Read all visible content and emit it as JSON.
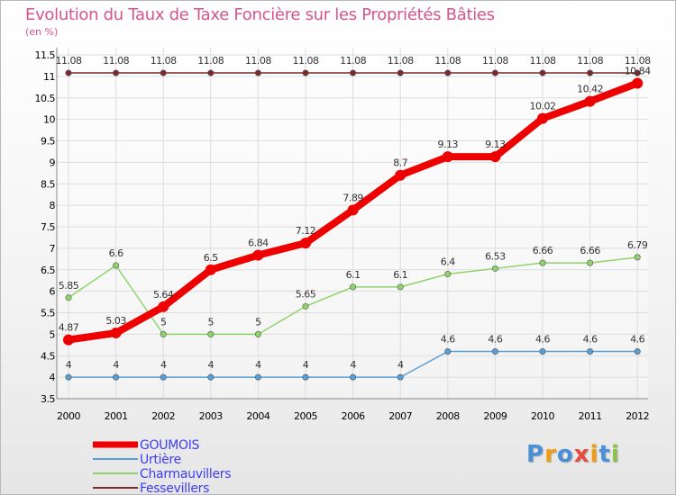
{
  "chart_data": {
    "type": "line",
    "title": "Evolution du Taux de Taxe Foncière sur les Propriétés Bâties",
    "ylabel": "(en %)",
    "x": [
      "2000",
      "2001",
      "2002",
      "2003",
      "2004",
      "2005",
      "2006",
      "2007",
      "2008",
      "2009",
      "2010",
      "2011",
      "2012"
    ],
    "y_ticks": [
      "3.5",
      "4",
      "4.5",
      "5",
      "5.5",
      "6",
      "6.5",
      "7",
      "7.5",
      "8",
      "8.5",
      "9",
      "9.5",
      "10",
      "10.5",
      "11",
      "11.5"
    ],
    "ylim": [
      3.5,
      11.5
    ],
    "grid": true,
    "legend_position": "bottom-left",
    "series": [
      {
        "name": "GOUMOIS",
        "color": "#ee0000",
        "values": [
          4.87,
          5.03,
          5.64,
          6.5,
          6.84,
          7.12,
          7.89,
          8.7,
          9.13,
          9.13,
          10.02,
          10.42,
          10.84
        ],
        "labels": [
          "4.87",
          "5.03",
          "5.64",
          "6.5",
          "6.84",
          "7.12",
          "7.89",
          "8.7",
          "9.13",
          "9.13",
          "10.02",
          "10.42",
          "10.84"
        ]
      },
      {
        "name": "Urtière",
        "color": "#5a9fd4",
        "values": [
          4,
          4,
          4,
          4,
          4,
          4,
          4,
          4,
          4.6,
          4.6,
          4.6,
          4.6,
          4.6
        ],
        "labels": [
          "4",
          "4",
          "4",
          "4",
          "4",
          "4",
          "4",
          "4",
          "4.6",
          "4.6",
          "4.6",
          "4.6",
          "4.6"
        ]
      },
      {
        "name": "Charmauvillers",
        "color": "#8fd46b",
        "values": [
          5.85,
          6.6,
          5,
          5,
          5,
          5.65,
          6.1,
          6.1,
          6.4,
          6.53,
          6.66,
          6.66,
          6.79
        ],
        "labels": [
          "5.85",
          "6.6",
          "5",
          "5",
          "5",
          "5.65",
          "6.1",
          "6.1",
          "6.4",
          "6.53",
          "6.66",
          "6.66",
          "6.79"
        ]
      },
      {
        "name": "Fessevillers",
        "color": "#7a2a2a",
        "values": [
          11.08,
          11.08,
          11.08,
          11.08,
          11.08,
          11.08,
          11.08,
          11.08,
          11.08,
          11.08,
          11.08,
          11.08,
          11.08
        ],
        "labels": [
          "11.08",
          "11.08",
          "11.08",
          "11.08",
          "11.08",
          "11.08",
          "11.08",
          "11.08",
          "11.08",
          "11.08",
          "11.08",
          "11.08",
          "11.08"
        ]
      }
    ]
  },
  "logo": {
    "text": "Proxiti",
    "letters": [
      "P",
      "r",
      "o",
      "x",
      "i",
      "t",
      "i"
    ],
    "colors": [
      "#4a90d9",
      "#f39c12",
      "#4a90d9",
      "#e74c3c",
      "#f39c12",
      "#4a90d9",
      "#8bc34a"
    ]
  }
}
